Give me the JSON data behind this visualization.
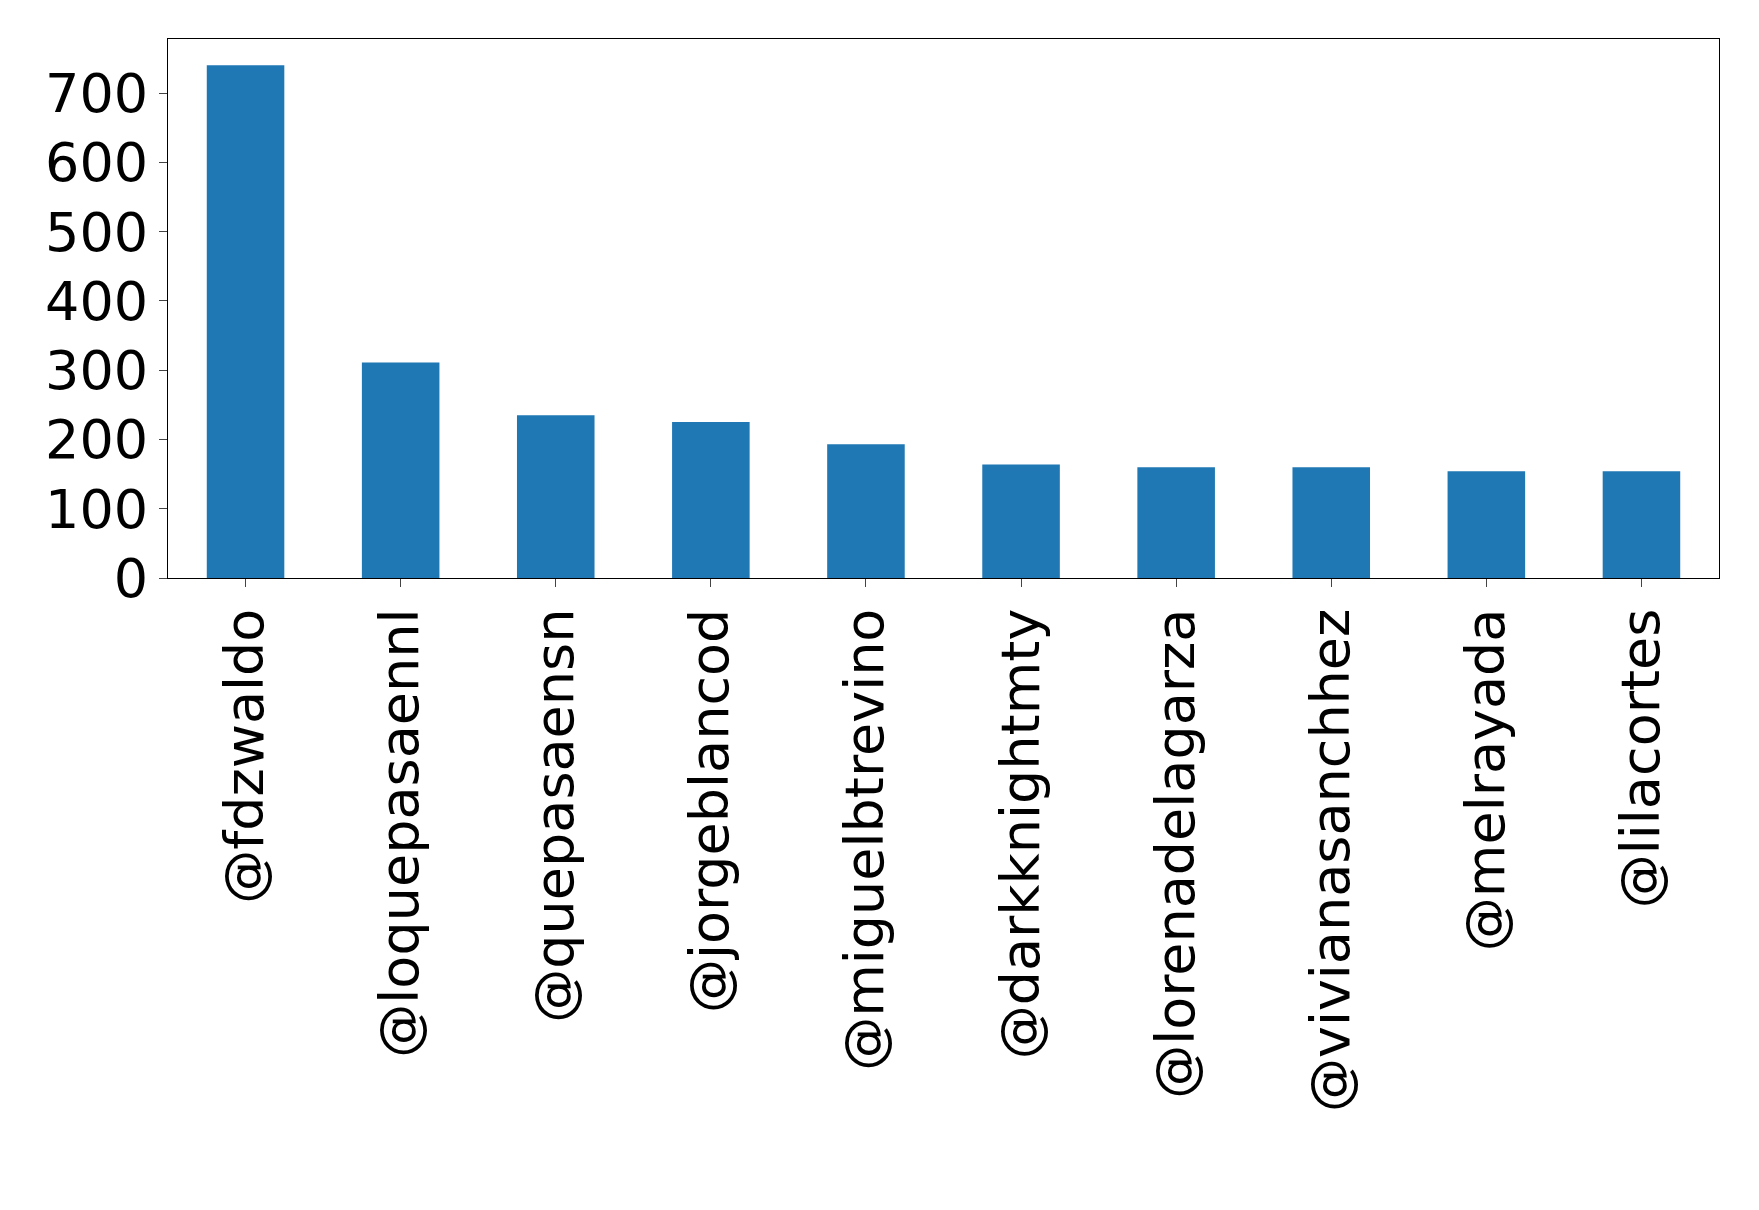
{
  "chart_data": {
    "type": "bar",
    "categories": [
      "@fdzwaldo",
      "@loquepasaennl",
      "@quepasaensn",
      "@jorgeblancod",
      "@miguelbtrevino",
      "@darkknightmty",
      "@lorenadelagarza",
      "@vivianasanchhez",
      "@melrayada",
      "@lilacortes"
    ],
    "values": [
      740,
      311,
      235,
      225,
      193,
      164,
      160,
      160,
      154,
      154
    ],
    "color": "#1f77b4",
    "ylim": [
      0,
      778
    ],
    "yticks": [
      0,
      100,
      200,
      300,
      400,
      500,
      600,
      700
    ],
    "legend": false
  }
}
